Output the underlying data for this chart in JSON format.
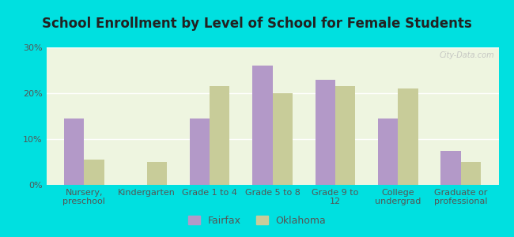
{
  "title": "School Enrollment by Level of School for Female Students",
  "categories": [
    "Nursery,\npreschool",
    "Kindergarten",
    "Grade 1 to 4",
    "Grade 5 to 8",
    "Grade 9 to\n12",
    "College\nundergrad",
    "Graduate or\nprofessional"
  ],
  "fairfax_values": [
    14.5,
    0,
    14.5,
    26.0,
    23.0,
    14.5,
    7.5
  ],
  "oklahoma_values": [
    5.5,
    5.0,
    21.5,
    20.0,
    21.5,
    21.0,
    5.0
  ],
  "fairfax_color": "#b399c8",
  "oklahoma_color": "#c8cc99",
  "background_outer": "#00e0e0",
  "background_inner": "#eef5e0",
  "ylim": [
    0,
    30
  ],
  "yticks": [
    0,
    10,
    20,
    30
  ],
  "ytick_labels": [
    "0%",
    "10%",
    "20%",
    "30%"
  ],
  "legend_labels": [
    "Fairfax",
    "Oklahoma"
  ],
  "bar_width": 0.32,
  "title_fontsize": 12,
  "axis_fontsize": 8,
  "legend_fontsize": 9,
  "watermark": "City-Data.com"
}
